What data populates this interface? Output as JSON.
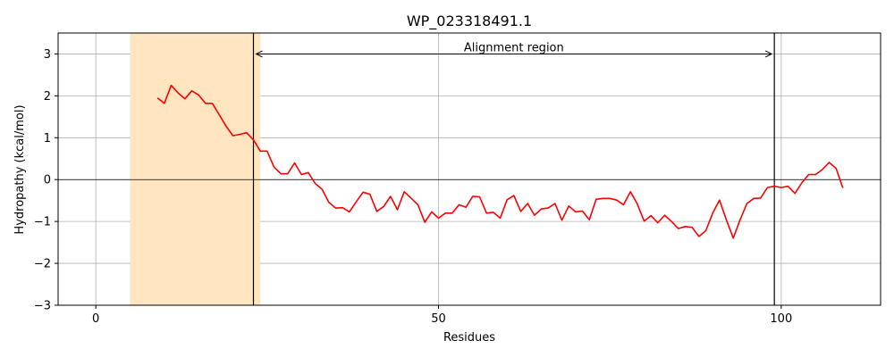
{
  "chart_data": {
    "type": "line",
    "title": "WP_023318491.1",
    "xlabel": "Residues",
    "ylabel": "Hydropathy (kcal/mol)",
    "xlim": [
      -5.5,
      114.5
    ],
    "ylim": [
      -3,
      3.5
    ],
    "xticks": [
      0,
      50,
      100
    ],
    "yticks": [
      -3,
      -2,
      -1,
      0,
      1,
      2,
      3
    ],
    "grid": true,
    "series": [
      {
        "color": "#ff0000",
        "x": [
          9,
          10,
          11,
          12,
          13,
          14,
          15,
          16,
          17,
          18,
          19,
          20,
          21,
          22,
          23,
          24,
          25,
          26,
          27,
          28,
          29,
          30,
          31,
          32,
          33,
          34,
          35,
          36,
          37,
          38,
          39,
          40,
          41,
          42,
          43,
          44,
          45,
          46,
          47,
          48,
          49,
          50,
          51,
          52,
          53,
          54,
          55,
          56,
          57,
          58,
          59,
          60,
          61,
          62,
          63,
          64,
          65,
          66,
          67,
          68,
          69,
          70,
          71,
          72,
          73,
          74,
          75,
          76,
          77,
          78,
          79,
          80,
          81,
          82,
          83,
          84,
          85,
          86,
          87,
          88,
          89,
          90,
          91,
          92,
          93,
          94,
          95,
          96,
          97,
          98,
          99,
          100,
          101,
          102,
          103,
          104,
          105,
          106,
          107,
          108,
          109
        ],
        "y": [
          1.95,
          1.82,
          2.25,
          2.07,
          1.93,
          2.12,
          2.02,
          1.82,
          1.82,
          1.55,
          1.28,
          1.05,
          1.08,
          1.12,
          0.95,
          0.68,
          0.68,
          0.3,
          0.14,
          0.14,
          0.4,
          0.12,
          0.17,
          -0.09,
          -0.23,
          -0.54,
          -0.68,
          -0.67,
          -0.77,
          -0.53,
          -0.3,
          -0.35,
          -0.76,
          -0.64,
          -0.4,
          -0.72,
          -0.29,
          -0.44,
          -0.6,
          -1.02,
          -0.77,
          -0.92,
          -0.8,
          -0.8,
          -0.6,
          -0.66,
          -0.4,
          -0.41,
          -0.8,
          -0.78,
          -0.92,
          -0.48,
          -0.38,
          -0.76,
          -0.57,
          -0.85,
          -0.7,
          -0.68,
          -0.57,
          -0.97,
          -0.63,
          -0.77,
          -0.75,
          -0.96,
          -0.47,
          -0.45,
          -0.45,
          -0.49,
          -0.6,
          -0.29,
          -0.58,
          -0.99,
          -0.86,
          -1.03,
          -0.85,
          -1.0,
          -1.17,
          -1.12,
          -1.14,
          -1.36,
          -1.22,
          -0.8,
          -0.49,
          -0.96,
          -1.4,
          -0.96,
          -0.57,
          -0.45,
          -0.44,
          -0.19,
          -0.16,
          -0.19,
          -0.16,
          -0.33,
          -0.08,
          0.12,
          0.12,
          0.24,
          0.41,
          0.27,
          -0.2
        ]
      }
    ],
    "shaded_region": {
      "x0": 5,
      "x1": 24,
      "color": "#ffe6c0"
    },
    "vlines": [
      23,
      99
    ],
    "hline": 0,
    "annotation": {
      "text": "Alignment region",
      "x_from": 23,
      "x_to": 99,
      "y": 3.0
    }
  }
}
